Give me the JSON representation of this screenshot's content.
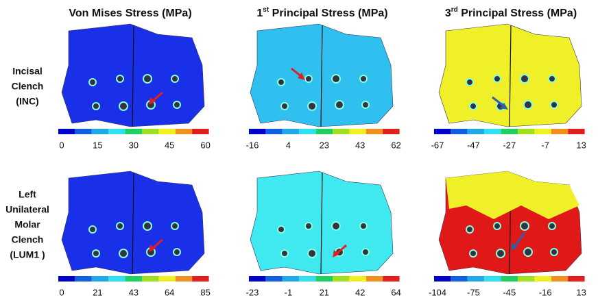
{
  "columns": [
    {
      "title": "Von Mises Stress (MPa)"
    },
    {
      "number": "1",
      "sup": "st",
      "text": " Principal Stress (MPa)"
    },
    {
      "number": "3",
      "sup": "rd",
      "text": " Principal Stress (MPa)"
    }
  ],
  "rows": [
    {
      "label_lines": [
        "Incisal",
        "Clench",
        "(INC)"
      ],
      "scales": [
        [
          "0",
          "15",
          "30",
          "45",
          "60"
        ],
        [
          "-16",
          "4",
          "23",
          "43",
          "62"
        ],
        [
          "-67",
          "-47",
          "-27",
          "-7",
          "13"
        ]
      ]
    },
    {
      "label_lines": [
        "Left",
        "Unilateral",
        "Molar",
        "Clench",
        "(LUM1 )"
      ],
      "scales": [
        [
          "0",
          "21",
          "43",
          "64",
          "85"
        ],
        [
          "-23",
          "-1",
          "21",
          "42",
          "64"
        ],
        [
          "-104",
          "-75",
          "-45",
          "-16",
          "13"
        ]
      ]
    }
  ]
}
